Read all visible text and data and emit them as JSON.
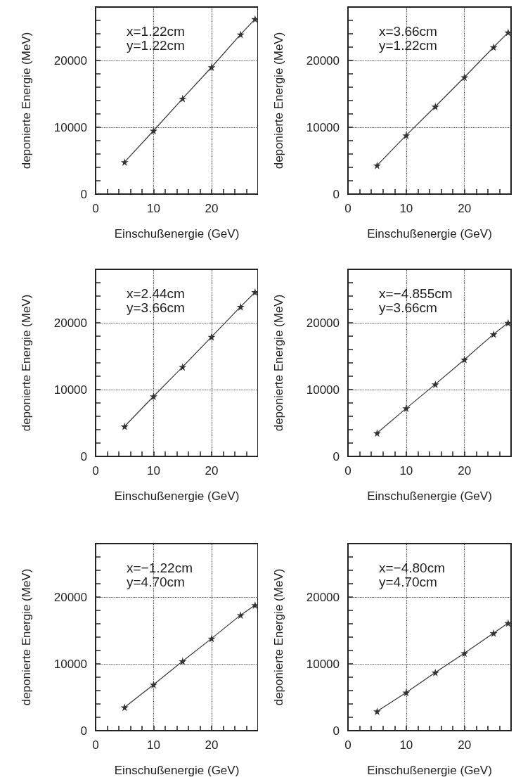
{
  "chart_data": [
    {
      "type": "line",
      "marker": "star",
      "grid": true,
      "xlabel": "Einschußenergie (GeV)",
      "ylabel": "deponierte Energie (MeV)",
      "annotations": [
        "x=1.22cm",
        "y=1.22cm"
      ],
      "xlim": [
        0,
        28
      ],
      "ylim": [
        0,
        28000
      ],
      "xticks": [
        0,
        {
          "value": 2,
          "label": null
        },
        {
          "value": 4,
          "label": null
        },
        {
          "value": 6,
          "label": null
        },
        {
          "value": 8,
          "label": null
        },
        10,
        {
          "value": 12,
          "label": null
        },
        {
          "value": 14,
          "label": null
        },
        {
          "value": 16,
          "label": null
        },
        {
          "value": 18,
          "label": null
        },
        20,
        {
          "value": 22,
          "label": null
        },
        {
          "value": 24,
          "label": null
        },
        {
          "value": 26,
          "label": null
        }
      ],
      "yticks": [
        0,
        {
          "value": 2000,
          "label": null
        },
        {
          "value": 4000,
          "label": null
        },
        {
          "value": 6000,
          "label": null
        },
        {
          "value": 8000,
          "label": null
        },
        10000,
        {
          "value": 12000,
          "label": null
        },
        {
          "value": 14000,
          "label": null
        },
        {
          "value": 16000,
          "label": null
        },
        {
          "value": 18000,
          "label": null
        },
        20000,
        {
          "value": 22000,
          "label": null
        },
        {
          "value": 24000,
          "label": null
        },
        {
          "value": 26000,
          "label": null
        }
      ],
      "x": [
        5,
        10,
        15,
        20,
        25,
        27.5
      ],
      "series": [
        {
          "color": "#333333",
          "values": [
            4800,
            9500,
            14300,
            19000,
            23900,
            26200
          ]
        }
      ]
    },
    {
      "type": "line",
      "marker": "star",
      "grid": true,
      "xlabel": "Einschußenergie (GeV)",
      "ylabel": "deponierte Energie (MeV)",
      "annotations": [
        "x=3.66cm",
        "y=1.22cm"
      ],
      "xlim": [
        0,
        28
      ],
      "ylim": [
        0,
        28000
      ],
      "xticks": [
        0,
        {
          "value": 2,
          "label": null
        },
        {
          "value": 4,
          "label": null
        },
        {
          "value": 6,
          "label": null
        },
        {
          "value": 8,
          "label": null
        },
        10,
        {
          "value": 12,
          "label": null
        },
        {
          "value": 14,
          "label": null
        },
        {
          "value": 16,
          "label": null
        },
        {
          "value": 18,
          "label": null
        },
        20,
        {
          "value": 22,
          "label": null
        },
        {
          "value": 24,
          "label": null
        },
        {
          "value": 26,
          "label": null
        }
      ],
      "yticks": [
        0,
        {
          "value": 2000,
          "label": null
        },
        {
          "value": 4000,
          "label": null
        },
        {
          "value": 6000,
          "label": null
        },
        {
          "value": 8000,
          "label": null
        },
        10000,
        {
          "value": 12000,
          "label": null
        },
        {
          "value": 14000,
          "label": null
        },
        {
          "value": 16000,
          "label": null
        },
        {
          "value": 18000,
          "label": null
        },
        20000,
        {
          "value": 22000,
          "label": null
        },
        {
          "value": 24000,
          "label": null
        },
        {
          "value": 26000,
          "label": null
        }
      ],
      "x": [
        5,
        10,
        15,
        20,
        25,
        27.5
      ],
      "series": [
        {
          "color": "#333333",
          "values": [
            4300,
            8800,
            13100,
            17500,
            22000,
            24200
          ]
        }
      ]
    },
    {
      "type": "line",
      "marker": "star",
      "grid": true,
      "xlabel": "Einschußenergie (GeV)",
      "ylabel": "deponierte Energie (MeV)",
      "annotations": [
        "x=2.44cm",
        "y=3.66cm"
      ],
      "xlim": [
        0,
        28
      ],
      "ylim": [
        0,
        28000
      ],
      "xticks": [
        0,
        {
          "value": 2,
          "label": null
        },
        {
          "value": 4,
          "label": null
        },
        {
          "value": 6,
          "label": null
        },
        {
          "value": 8,
          "label": null
        },
        10,
        {
          "value": 12,
          "label": null
        },
        {
          "value": 14,
          "label": null
        },
        {
          "value": 16,
          "label": null
        },
        {
          "value": 18,
          "label": null
        },
        20,
        {
          "value": 22,
          "label": null
        },
        {
          "value": 24,
          "label": null
        },
        {
          "value": 26,
          "label": null
        }
      ],
      "yticks": [
        0,
        {
          "value": 2000,
          "label": null
        },
        {
          "value": 4000,
          "label": null
        },
        {
          "value": 6000,
          "label": null
        },
        {
          "value": 8000,
          "label": null
        },
        10000,
        {
          "value": 12000,
          "label": null
        },
        {
          "value": 14000,
          "label": null
        },
        {
          "value": 16000,
          "label": null
        },
        {
          "value": 18000,
          "label": null
        },
        20000,
        {
          "value": 22000,
          "label": null
        },
        {
          "value": 24000,
          "label": null
        },
        {
          "value": 26000,
          "label": null
        }
      ],
      "x": [
        5,
        10,
        15,
        20,
        25,
        27.5
      ],
      "series": [
        {
          "color": "#333333",
          "values": [
            4500,
            9000,
            13400,
            17900,
            22400,
            24600
          ]
        }
      ]
    },
    {
      "type": "line",
      "marker": "star",
      "grid": true,
      "xlabel": "Einschußenergie (GeV)",
      "ylabel": "deponierte Energie (MeV)",
      "annotations": [
        "x=−4.855cm",
        "y=3.66cm"
      ],
      "xlim": [
        0,
        28
      ],
      "ylim": [
        0,
        28000
      ],
      "xticks": [
        0,
        {
          "value": 2,
          "label": null
        },
        {
          "value": 4,
          "label": null
        },
        {
          "value": 6,
          "label": null
        },
        {
          "value": 8,
          "label": null
        },
        10,
        {
          "value": 12,
          "label": null
        },
        {
          "value": 14,
          "label": null
        },
        {
          "value": 16,
          "label": null
        },
        {
          "value": 18,
          "label": null
        },
        20,
        {
          "value": 22,
          "label": null
        },
        {
          "value": 24,
          "label": null
        },
        {
          "value": 26,
          "label": null
        }
      ],
      "yticks": [
        0,
        {
          "value": 2000,
          "label": null
        },
        {
          "value": 4000,
          "label": null
        },
        {
          "value": 6000,
          "label": null
        },
        {
          "value": 8000,
          "label": null
        },
        10000,
        {
          "value": 12000,
          "label": null
        },
        {
          "value": 14000,
          "label": null
        },
        {
          "value": 16000,
          "label": null
        },
        {
          "value": 18000,
          "label": null
        },
        20000,
        {
          "value": 22000,
          "label": null
        },
        {
          "value": 24000,
          "label": null
        },
        {
          "value": 26000,
          "label": null
        }
      ],
      "x": [
        5,
        10,
        15,
        20,
        25,
        27.5
      ],
      "series": [
        {
          "color": "#333333",
          "values": [
            3500,
            7200,
            10800,
            14500,
            18300,
            20000
          ]
        }
      ]
    },
    {
      "type": "line",
      "marker": "star",
      "grid": true,
      "xlabel": "Einschußenergie (GeV)",
      "ylabel": "deponierte Energie (MeV)",
      "annotations": [
        "x=−1.22cm",
        "y=4.70cm"
      ],
      "xlim": [
        0,
        28
      ],
      "ylim": [
        0,
        28000
      ],
      "xticks": [
        0,
        {
          "value": 2,
          "label": null
        },
        {
          "value": 4,
          "label": null
        },
        {
          "value": 6,
          "label": null
        },
        {
          "value": 8,
          "label": null
        },
        10,
        {
          "value": 12,
          "label": null
        },
        {
          "value": 14,
          "label": null
        },
        {
          "value": 16,
          "label": null
        },
        {
          "value": 18,
          "label": null
        },
        20,
        {
          "value": 22,
          "label": null
        },
        {
          "value": 24,
          "label": null
        },
        {
          "value": 26,
          "label": null
        }
      ],
      "yticks": [
        0,
        {
          "value": 2000,
          "label": null
        },
        {
          "value": 4000,
          "label": null
        },
        {
          "value": 6000,
          "label": null
        },
        {
          "value": 8000,
          "label": null
        },
        10000,
        {
          "value": 12000,
          "label": null
        },
        {
          "value": 14000,
          "label": null
        },
        {
          "value": 16000,
          "label": null
        },
        {
          "value": 18000,
          "label": null
        },
        20000,
        {
          "value": 22000,
          "label": null
        },
        {
          "value": 24000,
          "label": null
        },
        {
          "value": 26000,
          "label": null
        }
      ],
      "x": [
        5,
        10,
        15,
        20,
        25,
        27.5
      ],
      "series": [
        {
          "color": "#333333",
          "values": [
            3500,
            6900,
            10400,
            13800,
            17300,
            18800
          ]
        }
      ]
    },
    {
      "type": "line",
      "marker": "star",
      "grid": true,
      "xlabel": "Einschußenergie (GeV)",
      "ylabel": "deponierte Energie (MeV)",
      "annotations": [
        "x=−4.80cm",
        "y=4.70cm"
      ],
      "xlim": [
        0,
        28
      ],
      "ylim": [
        0,
        28000
      ],
      "xticks": [
        0,
        {
          "value": 2,
          "label": null
        },
        {
          "value": 4,
          "label": null
        },
        {
          "value": 6,
          "label": null
        },
        {
          "value": 8,
          "label": null
        },
        10,
        {
          "value": 12,
          "label": null
        },
        {
          "value": 14,
          "label": null
        },
        {
          "value": 16,
          "label": null
        },
        {
          "value": 18,
          "label": null
        },
        20,
        {
          "value": 22,
          "label": null
        },
        {
          "value": 24,
          "label": null
        },
        {
          "value": 26,
          "label": null
        }
      ],
      "yticks": [
        0,
        {
          "value": 2000,
          "label": null
        },
        {
          "value": 4000,
          "label": null
        },
        {
          "value": 6000,
          "label": null
        },
        {
          "value": 8000,
          "label": null
        },
        10000,
        {
          "value": 12000,
          "label": null
        },
        {
          "value": 14000,
          "label": null
        },
        {
          "value": 16000,
          "label": null
        },
        {
          "value": 18000,
          "label": null
        },
        20000,
        {
          "value": 22000,
          "label": null
        },
        {
          "value": 24000,
          "label": null
        },
        {
          "value": 26000,
          "label": null
        }
      ],
      "x": [
        5,
        10,
        15,
        20,
        25,
        27.5
      ],
      "series": [
        {
          "color": "#333333",
          "values": [
            2900,
            5700,
            8700,
            11600,
            14600,
            16100
          ]
        }
      ]
    }
  ]
}
